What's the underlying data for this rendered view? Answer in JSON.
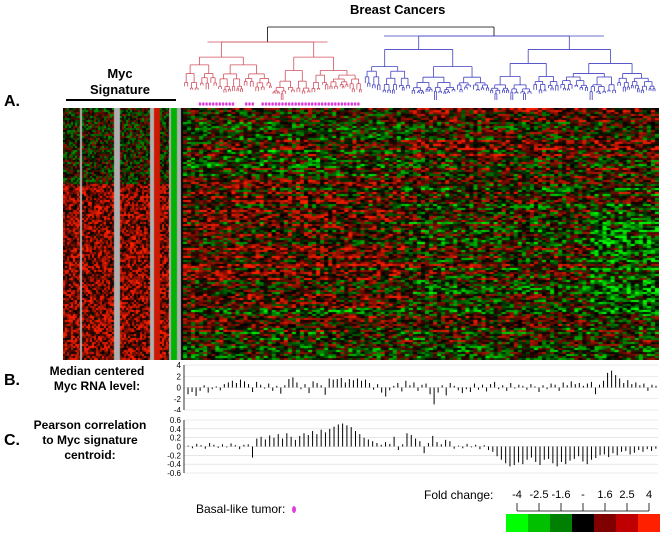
{
  "title": "Breast Cancers",
  "signature_title_line1": "Myc",
  "signature_title_line2": "Signature",
  "panel_a": {
    "letter": "A."
  },
  "panel_b": {
    "letter": "B.",
    "label_line1": "Median centered",
    "label_line2": "Myc RNA level:",
    "ticks": [
      "4",
      "2",
      "0",
      "-2",
      "-4"
    ]
  },
  "panel_c": {
    "letter": "C.",
    "label_line1": "Pearson correlation",
    "label_line2": "to Myc signature",
    "label_line3": "centroid:",
    "ticks": [
      "0.6",
      "0.4",
      "0.2",
      "0",
      "-0.2",
      "-0.4",
      "-0.6"
    ]
  },
  "legend": {
    "basal_label": "Basal-like tumor:",
    "fold_change_label": "Fold change:",
    "fold_ticks": [
      "-4",
      "-2.5",
      "-1.6",
      "-",
      "1.6",
      "2.5",
      "4"
    ],
    "scale_colors": [
      "#00ff00",
      "#00c000",
      "#008000",
      "#000000",
      "#800000",
      "#c00000",
      "#ff2000"
    ]
  },
  "colors": {
    "basal_cluster": "#d05060",
    "luminal_cluster": "#4040c0",
    "basal_marker": "#e040e0",
    "heat_red": "#ff2000",
    "heat_green": "#00ff00"
  },
  "chart_data": [
    {
      "type": "bar",
      "ylim": [
        -4,
        4
      ],
      "values": [
        -1.2,
        -0.8,
        -1.5,
        -0.6,
        0.4,
        -0.9,
        -0.3,
        0.2,
        -0.5,
        0.6,
        0.9,
        1.2,
        0.8,
        1.4,
        1.1,
        0.6,
        -0.8,
        1.0,
        0.5,
        -0.2,
        0.7,
        -0.6,
        0.3,
        -1.1,
        0.4,
        1.5,
        1.8,
        0.9,
        -0.3,
        0.6,
        -1.0,
        1.1,
        0.8,
        0.4,
        -1.3,
        1.6,
        1.4,
        1.5,
        1.7,
        0.9,
        1.5,
        1.3,
        1.6,
        1.2,
        1.4,
        0.8,
        -0.4,
        0.6,
        -0.9,
        -1.6,
        -0.5,
        0.3,
        0.8,
        -0.7,
        1.2,
        0.4,
        0.9,
        -0.6,
        0.5,
        0.7,
        -1.2,
        -3.0,
        -0.9,
        0.4,
        -1.4,
        0.8,
        0.3,
        -0.5,
        -1.0,
        -0.3,
        -0.8,
        0.7,
        -0.4,
        0.5,
        -0.7,
        0.6,
        1.0,
        -0.3,
        0.4,
        -0.6,
        0.8,
        -0.2,
        0.5,
        0.3,
        -0.4,
        0.6,
        0.2,
        -0.8,
        0.4,
        -0.3,
        0.7,
        0.5,
        -0.6,
        0.9,
        0.4,
        1.1,
        0.6,
        0.8,
        0.3,
        0.7,
        1.0,
        -1.2,
        0.5,
        1.2,
        2.6,
        3.0,
        2.2,
        1.6,
        0.8,
        1.3,
        0.6,
        0.9,
        0.4,
        0.7,
        -0.6,
        0.5,
        0.3
      ]
    },
    {
      "type": "bar",
      "ylim": [
        -0.6,
        0.6
      ],
      "values": [
        0.02,
        -0.04,
        0.06,
        0.03,
        -0.05,
        0.08,
        0.04,
        -0.03,
        0.05,
        -0.02,
        0.07,
        0.03,
        -0.06,
        0.04,
        0.05,
        -0.25,
        0.18,
        0.22,
        0.16,
        0.25,
        0.2,
        0.28,
        0.18,
        0.3,
        0.22,
        0.15,
        0.24,
        0.3,
        0.26,
        0.35,
        0.28,
        0.38,
        0.32,
        0.4,
        0.45,
        0.5,
        0.52,
        0.48,
        0.44,
        0.35,
        0.28,
        0.2,
        0.16,
        0.12,
        0.08,
        0.04,
        0.1,
        0.06,
        0.22,
        -0.08,
        0.05,
        0.3,
        0.26,
        0.18,
        0.12,
        -0.15,
        0.08,
        0.24,
        0.1,
        0.05,
        0.15,
        0.12,
        -0.05,
        0.02,
        -0.04,
        0.06,
        -0.02,
        0.04,
        -0.06,
        0.03,
        -0.08,
        -0.12,
        -0.22,
        -0.3,
        -0.38,
        -0.45,
        -0.42,
        -0.36,
        -0.4,
        -0.3,
        -0.25,
        -0.35,
        -0.42,
        -0.3,
        -0.28,
        -0.38,
        -0.45,
        -0.35,
        -0.4,
        -0.32,
        -0.28,
        -0.22,
        -0.34,
        -0.4,
        -0.3,
        -0.26,
        -0.2,
        -0.18,
        -0.24,
        -0.15,
        -0.2,
        -0.12,
        -0.1,
        -0.18,
        -0.14,
        -0.08,
        -0.12,
        -0.06,
        -0.1,
        -0.05
      ]
    }
  ]
}
